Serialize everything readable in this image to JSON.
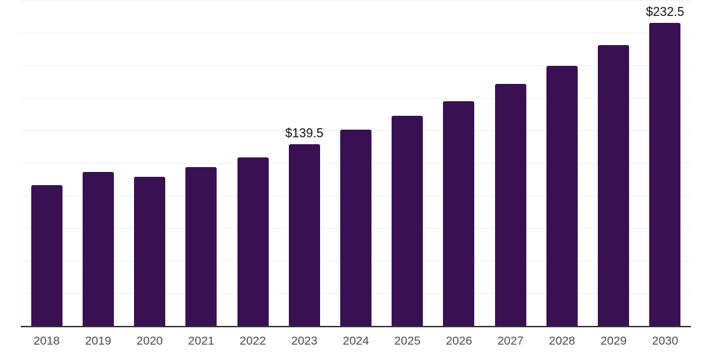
{
  "chart_data": {
    "type": "bar",
    "title": "",
    "xlabel": "",
    "ylabel": "",
    "categories": [
      "2018",
      "2019",
      "2020",
      "2021",
      "2022",
      "2023",
      "2024",
      "2025",
      "2026",
      "2027",
      "2028",
      "2029",
      "2030"
    ],
    "values": [
      108.1,
      118.2,
      114.2,
      121.6,
      129.5,
      139.5,
      150.7,
      161.3,
      172.2,
      185.5,
      199.4,
      215.5,
      232.5
    ],
    "data_labels": [
      "",
      "",
      "",
      "",
      "",
      "$139.5",
      "",
      "",
      "",
      "",
      "",
      "",
      "$232.5"
    ],
    "ylim": [
      0,
      250
    ],
    "gridline_step": 25,
    "grid": "horizontal",
    "legend": "none",
    "bar_color": "#391153",
    "axis_line_color": "#333333",
    "gridline_color": "#f1f1f1",
    "data_label_color": "#111111",
    "tick_label_color": "#4a4a4a"
  }
}
